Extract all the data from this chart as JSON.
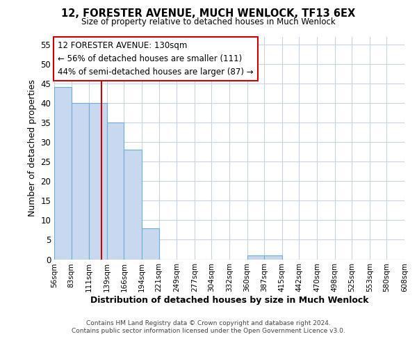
{
  "title": "12, FORESTER AVENUE, MUCH WENLOCK, TF13 6EX",
  "subtitle": "Size of property relative to detached houses in Much Wenlock",
  "xlabel": "Distribution of detached houses by size in Much Wenlock",
  "ylabel": "Number of detached properties",
  "footer_line1": "Contains HM Land Registry data © Crown copyright and database right 2024.",
  "footer_line2": "Contains public sector information licensed under the Open Government Licence v3.0.",
  "bin_edges": [
    56,
    83,
    111,
    139,
    166,
    194,
    221,
    249,
    277,
    304,
    332,
    360,
    387,
    415,
    442,
    470,
    498,
    525,
    553,
    580,
    608
  ],
  "bar_heights": [
    44,
    40,
    40,
    35,
    28,
    8,
    0,
    0,
    0,
    0,
    0,
    1,
    1,
    0,
    0,
    0,
    0,
    0,
    0,
    0
  ],
  "bar_color": "#c8d8ee",
  "bar_edgecolor": "#6baed6",
  "property_size": 130,
  "vline_color": "#cc0000",
  "annotation_title": "12 FORESTER AVENUE: 130sqm",
  "annotation_line1": "← 56% of detached houses are smaller (111)",
  "annotation_line2": "44% of semi-detached houses are larger (87) →",
  "annotation_box_edgecolor": "#cc0000",
  "annotation_box_facecolor": "#ffffff",
  "ylim": [
    0,
    57
  ],
  "yticks": [
    0,
    5,
    10,
    15,
    20,
    25,
    30,
    35,
    40,
    45,
    50,
    55
  ],
  "background_color": "#ffffff",
  "plot_background_color": "#ffffff",
  "grid_color": "#c8d4e4"
}
